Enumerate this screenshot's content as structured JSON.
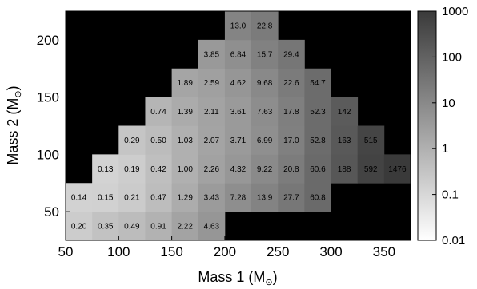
{
  "chart_data": {
    "type": "heatmap",
    "xlabel": "Mass 1 (M",
    "ylabel": "Mass 2 (M",
    "axis_unit_symbol": "⊙",
    "x_ticks": [
      "50",
      "100",
      "150",
      "200",
      "250",
      "300",
      "350"
    ],
    "y_ticks": [
      "50",
      "100",
      "150",
      "200"
    ],
    "xlim": [
      50,
      375
    ],
    "ylim": [
      25,
      225
    ],
    "cell_size": 25,
    "scale": "log",
    "colorbar_range": [
      0.01,
      1000
    ],
    "colorbar_ticks": [
      "1000",
      "100",
      "10",
      "1",
      "0.1",
      "0.01"
    ],
    "background_color": "#000000",
    "color_low": "#ffffff",
    "color_high": "#3a3a3a",
    "cells": [
      {
        "x": 50,
        "y": 25,
        "label": "0.20"
      },
      {
        "x": 75,
        "y": 25,
        "label": "0.35"
      },
      {
        "x": 100,
        "y": 25,
        "label": "0.49"
      },
      {
        "x": 125,
        "y": 25,
        "label": "0.91"
      },
      {
        "x": 150,
        "y": 25,
        "label": "2.22"
      },
      {
        "x": 175,
        "y": 25,
        "label": "4.63"
      },
      {
        "x": 50,
        "y": 50,
        "label": "0.14"
      },
      {
        "x": 75,
        "y": 50,
        "label": "0.15"
      },
      {
        "x": 100,
        "y": 50,
        "label": "0.21"
      },
      {
        "x": 125,
        "y": 50,
        "label": "0.47"
      },
      {
        "x": 150,
        "y": 50,
        "label": "1.29"
      },
      {
        "x": 175,
        "y": 50,
        "label": "3.43"
      },
      {
        "x": 200,
        "y": 50,
        "label": "7.28"
      },
      {
        "x": 225,
        "y": 50,
        "label": "13.9"
      },
      {
        "x": 250,
        "y": 50,
        "label": "27.7"
      },
      {
        "x": 275,
        "y": 50,
        "label": "60.8"
      },
      {
        "x": 75,
        "y": 75,
        "label": "0.13"
      },
      {
        "x": 100,
        "y": 75,
        "label": "0.19"
      },
      {
        "x": 125,
        "y": 75,
        "label": "0.42"
      },
      {
        "x": 150,
        "y": 75,
        "label": "1.00"
      },
      {
        "x": 175,
        "y": 75,
        "label": "2.26"
      },
      {
        "x": 200,
        "y": 75,
        "label": "4.32"
      },
      {
        "x": 225,
        "y": 75,
        "label": "9.22"
      },
      {
        "x": 250,
        "y": 75,
        "label": "20.8"
      },
      {
        "x": 275,
        "y": 75,
        "label": "60.6"
      },
      {
        "x": 300,
        "y": 75,
        "label": "188"
      },
      {
        "x": 325,
        "y": 75,
        "label": "592"
      },
      {
        "x": 350,
        "y": 75,
        "label": "1476"
      },
      {
        "x": 100,
        "y": 100,
        "label": "0.29"
      },
      {
        "x": 125,
        "y": 100,
        "label": "0.50"
      },
      {
        "x": 150,
        "y": 100,
        "label": "1.03"
      },
      {
        "x": 175,
        "y": 100,
        "label": "2.07"
      },
      {
        "x": 200,
        "y": 100,
        "label": "3.71"
      },
      {
        "x": 225,
        "y": 100,
        "label": "6.99"
      },
      {
        "x": 250,
        "y": 100,
        "label": "17.0"
      },
      {
        "x": 275,
        "y": 100,
        "label": "52.8"
      },
      {
        "x": 300,
        "y": 100,
        "label": "163"
      },
      {
        "x": 325,
        "y": 100,
        "label": "515"
      },
      {
        "x": 125,
        "y": 125,
        "label": "0.74"
      },
      {
        "x": 150,
        "y": 125,
        "label": "1.39"
      },
      {
        "x": 175,
        "y": 125,
        "label": "2.11"
      },
      {
        "x": 200,
        "y": 125,
        "label": "3.61"
      },
      {
        "x": 225,
        "y": 125,
        "label": "7.63"
      },
      {
        "x": 250,
        "y": 125,
        "label": "17.8"
      },
      {
        "x": 275,
        "y": 125,
        "label": "52.3"
      },
      {
        "x": 300,
        "y": 125,
        "label": "142"
      },
      {
        "x": 150,
        "y": 150,
        "label": "1.89"
      },
      {
        "x": 175,
        "y": 150,
        "label": "2.59"
      },
      {
        "x": 200,
        "y": 150,
        "label": "4.62"
      },
      {
        "x": 225,
        "y": 150,
        "label": "9.68"
      },
      {
        "x": 250,
        "y": 150,
        "label": "22.6"
      },
      {
        "x": 275,
        "y": 150,
        "label": "54.7"
      },
      {
        "x": 175,
        "y": 175,
        "label": "3.85"
      },
      {
        "x": 200,
        "y": 175,
        "label": "6.84"
      },
      {
        "x": 225,
        "y": 175,
        "label": "15.7"
      },
      {
        "x": 250,
        "y": 175,
        "label": "29.4"
      },
      {
        "x": 200,
        "y": 200,
        "label": "13.0"
      },
      {
        "x": 225,
        "y": 200,
        "label": "22.8"
      }
    ]
  }
}
